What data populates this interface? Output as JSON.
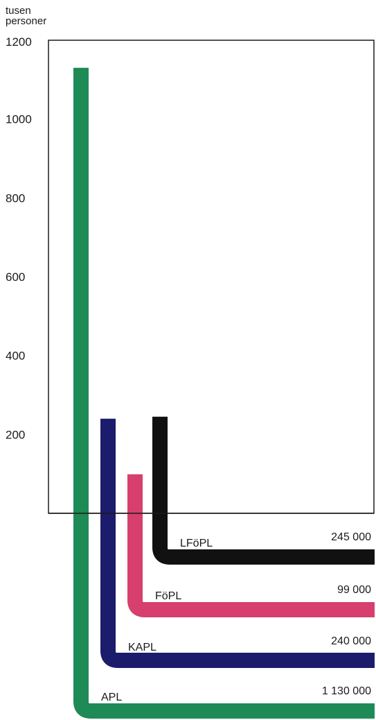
{
  "chart_data": {
    "type": "bar",
    "unit_label_lines": [
      "tusen",
      "personer"
    ],
    "y_ticks": [
      1200,
      1000,
      800,
      600,
      400,
      200
    ],
    "ylim": [
      0,
      1200
    ],
    "grid": false,
    "legend": "none",
    "series": [
      {
        "name": "APL",
        "total": "1 130 000",
        "value": 1130,
        "color": "#1e8a55"
      },
      {
        "name": "KAPL",
        "total": "240 000",
        "value": 240,
        "color": "#1b1c6b"
      },
      {
        "name": "FöPL",
        "total": "99 000",
        "value": 99,
        "color": "#d63f6e"
      },
      {
        "name": "LFöPL",
        "total": "245 000",
        "value": 245,
        "color": "#111111"
      }
    ]
  }
}
